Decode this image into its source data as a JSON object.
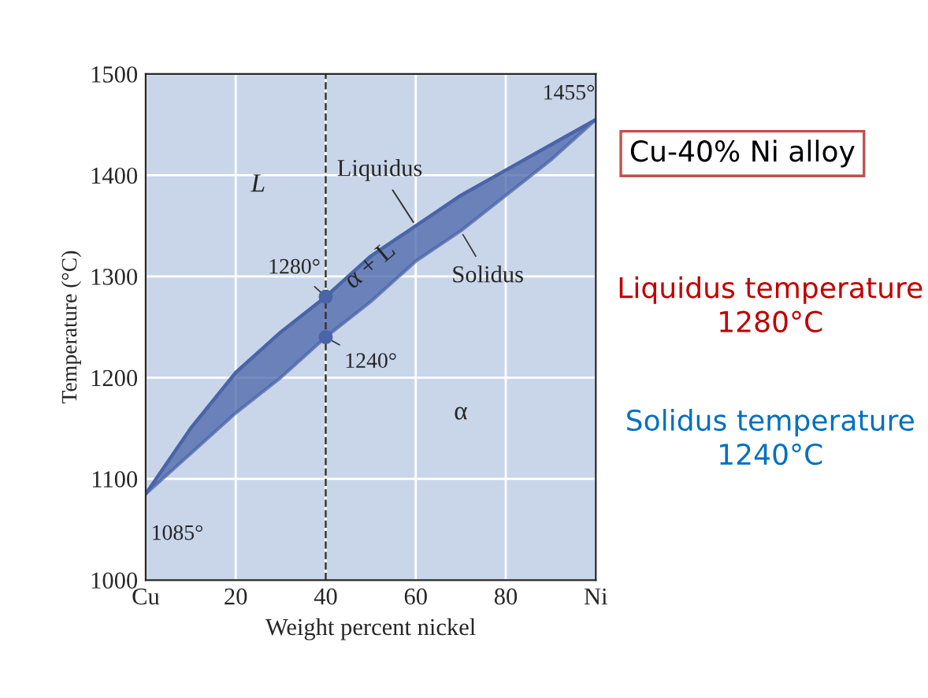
{
  "chart_data": {
    "type": "line",
    "xlabel": "Weight percent nickel",
    "ylabel": "Temperature (°C)",
    "x": [
      0,
      10,
      20,
      30,
      40,
      50,
      60,
      70,
      80,
      90,
      100
    ],
    "series": [
      {
        "name": "Liquidus",
        "color": "#4a64a8",
        "values": [
          1085,
          1150,
          1205,
          1245,
          1280,
          1320,
          1350,
          1380,
          1405,
          1430,
          1455
        ],
        "upper": [
          1085,
          1150,
          1205,
          1245,
          1280,
          1320,
          1350,
          1380,
          1405,
          1430,
          1455
        ],
        "lower": [
          1085,
          1125,
          1165,
          1200,
          1240,
          1275,
          1315,
          1345,
          1380,
          1415,
          1455
        ]
      },
      {
        "type": "scatter",
        "color": "#4a64a8",
        "marker": "circle",
        "x": [
          40,
          40
        ],
        "values": [
          1280,
          1240
        ]
      }
    ],
    "xlim": [
      0,
      100
    ],
    "ylim": [
      1000,
      1500
    ],
    "xticks": [
      {
        "value": 0,
        "label": "Cu"
      },
      20,
      40,
      60,
      80,
      {
        "value": 100,
        "label": "Ni"
      }
    ],
    "yticks": [
      1000,
      1100,
      1200,
      1300,
      1400,
      1500
    ],
    "grid": true,
    "line_style": "solid",
    "ref_lines": [
      {
        "axis": "x",
        "value": 40,
        "line_style": "dashed",
        "color": "#333333"
      }
    ],
    "annotations": [
      {
        "text": "1280°",
        "x": 40,
        "y": 1280
      },
      {
        "text": "1240°",
        "x": 40,
        "y": 1240
      },
      {
        "text": "1085°",
        "x": 0,
        "y": 1085
      },
      {
        "text": "1455°",
        "x": 100,
        "y": 1455
      },
      {
        "text": "Solidus",
        "x": 70,
        "y": 1345
      },
      "L",
      "α + L",
      "α",
      "Cu-40% Ni alloy",
      "Liquidus temperature\n1280°C",
      "Solidus temperature\n1240°C"
    ]
  }
}
